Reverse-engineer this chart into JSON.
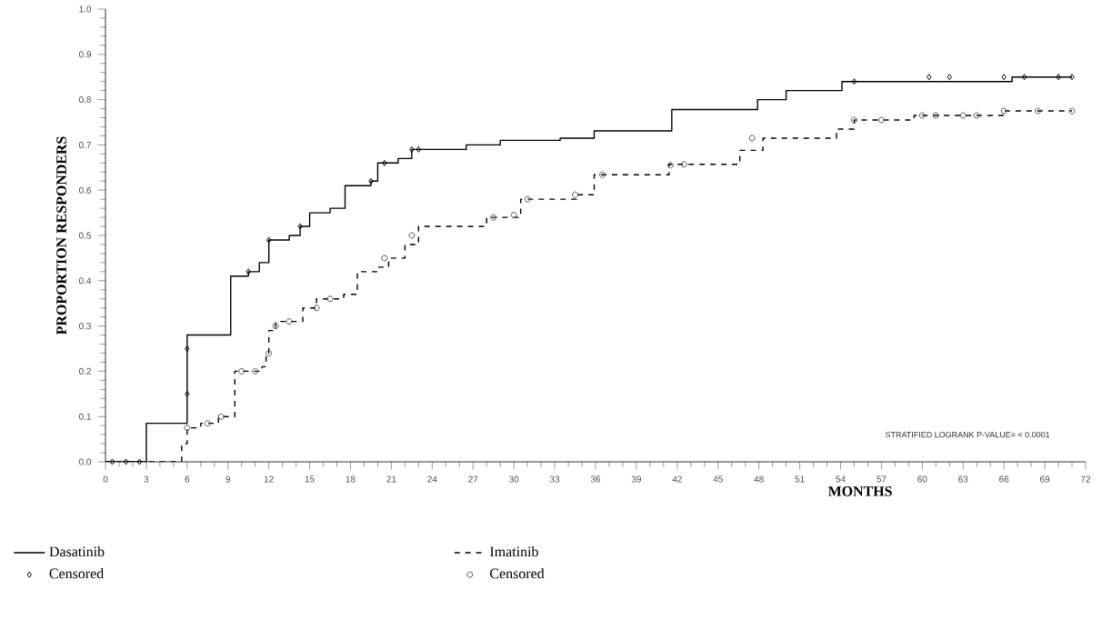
{
  "chart_data": {
    "type": "step",
    "xlabel": "MONTHS",
    "ylabel": "PROPORTION RESPONDERS",
    "xlim": [
      0,
      72
    ],
    "ylim": [
      0,
      1
    ],
    "xticks": [
      0,
      3,
      6,
      9,
      12,
      15,
      18,
      21,
      24,
      27,
      30,
      33,
      36,
      39,
      42,
      45,
      48,
      51,
      54,
      57,
      60,
      63,
      66,
      69,
      72
    ],
    "yticks": [
      {
        "value": 0,
        "label": "0.0"
      },
      {
        "value": 0.1,
        "label": "0.1"
      },
      {
        "value": 0.2,
        "label": "0.2"
      },
      {
        "value": 0.3,
        "label": "0.3"
      },
      {
        "value": 0.4,
        "label": "0.4"
      },
      {
        "value": 0.5,
        "label": "0.5"
      },
      {
        "value": 0.6,
        "label": "0.6"
      },
      {
        "value": 0.7,
        "label": "0.7"
      },
      {
        "value": 0.8,
        "label": "0.8"
      },
      {
        "value": 0.9,
        "label": "0.9"
      },
      {
        "value": 1,
        "label": "1.0"
      }
    ],
    "grid": false,
    "legend": "bottom",
    "annotations": [
      "STRATIFIED LOGRANK P-VALUE= < 0.0001"
    ],
    "series": [
      {
        "name": "Dasatinib",
        "color": "#000000",
        "line_style": "solid",
        "marker": "none",
        "x": [
          0,
          3.0,
          6.0,
          9.2,
          10.5,
          11.3,
          12,
          13.5,
          14.3,
          15,
          16.5,
          17.6,
          19.5,
          20,
          21.5,
          22.5,
          26.5,
          29,
          33.4,
          35.9,
          41.6,
          47.9,
          50,
          54.1,
          66.6,
          71
        ],
        "values": [
          0,
          0.085,
          0.28,
          0.41,
          0.42,
          0.44,
          0.49,
          0.5,
          0.52,
          0.55,
          0.56,
          0.61,
          0.62,
          0.66,
          0.67,
          0.69,
          0.7,
          0.71,
          0.715,
          0.731,
          0.778,
          0.8,
          0.82,
          0.84,
          0.85,
          0.85
        ]
      },
      {
        "name": "Imatinib",
        "color": "#000000",
        "line_style": "dashed",
        "marker": "none",
        "x": [
          0,
          5.6,
          6,
          7,
          8.3,
          9.5,
          11.5,
          11.8,
          12,
          12.5,
          14.5,
          15.5,
          17.5,
          18.5,
          20,
          20.8,
          22,
          23,
          28,
          30.5,
          34.6,
          35.9,
          41.4,
          46.6,
          48.3,
          53.7,
          55,
          59.4,
          66.1,
          71
        ],
        "values": [
          0,
          0.04,
          0.075,
          0.085,
          0.1,
          0.2,
          0.21,
          0.24,
          0.29,
          0.31,
          0.34,
          0.36,
          0.37,
          0.42,
          0.43,
          0.45,
          0.48,
          0.52,
          0.54,
          0.58,
          0.59,
          0.634,
          0.657,
          0.688,
          0.715,
          0.735,
          0.755,
          0.765,
          0.775,
          0.775
        ]
      },
      {
        "name": "Censored",
        "type": "scatter",
        "color": "#000000",
        "marker": "diamond",
        "x": [
          0.5,
          1.5,
          2.5,
          6,
          6,
          10.5,
          12,
          14.3,
          19.5,
          20.5,
          22.5,
          23,
          55,
          60.5,
          62,
          66,
          67.5,
          70,
          71
        ],
        "values": [
          0,
          0,
          0,
          0.15,
          0.25,
          0.42,
          0.49,
          0.52,
          0.62,
          0.66,
          0.69,
          0.69,
          0.84,
          0.85,
          0.85,
          0.85,
          0.85,
          0.85,
          0.85
        ]
      },
      {
        "name": "Censored",
        "type": "scatter",
        "color": "#555555",
        "marker": "circle",
        "x": [
          6,
          7.5,
          8.5,
          10,
          11,
          12,
          12.5,
          13.5,
          15.5,
          16.5,
          20.5,
          22.5,
          28.5,
          30,
          31,
          34.5,
          36.5,
          41.5,
          42.5,
          47.5,
          55,
          57,
          60,
          61,
          63,
          64,
          66,
          68.5,
          71
        ],
        "values": [
          0.075,
          0.085,
          0.1,
          0.2,
          0.2,
          0.24,
          0.3,
          0.31,
          0.34,
          0.36,
          0.45,
          0.5,
          0.54,
          0.545,
          0.58,
          0.59,
          0.634,
          0.655,
          0.657,
          0.715,
          0.755,
          0.755,
          0.765,
          0.765,
          0.765,
          0.765,
          0.775,
          0.775,
          0.775
        ]
      }
    ]
  }
}
